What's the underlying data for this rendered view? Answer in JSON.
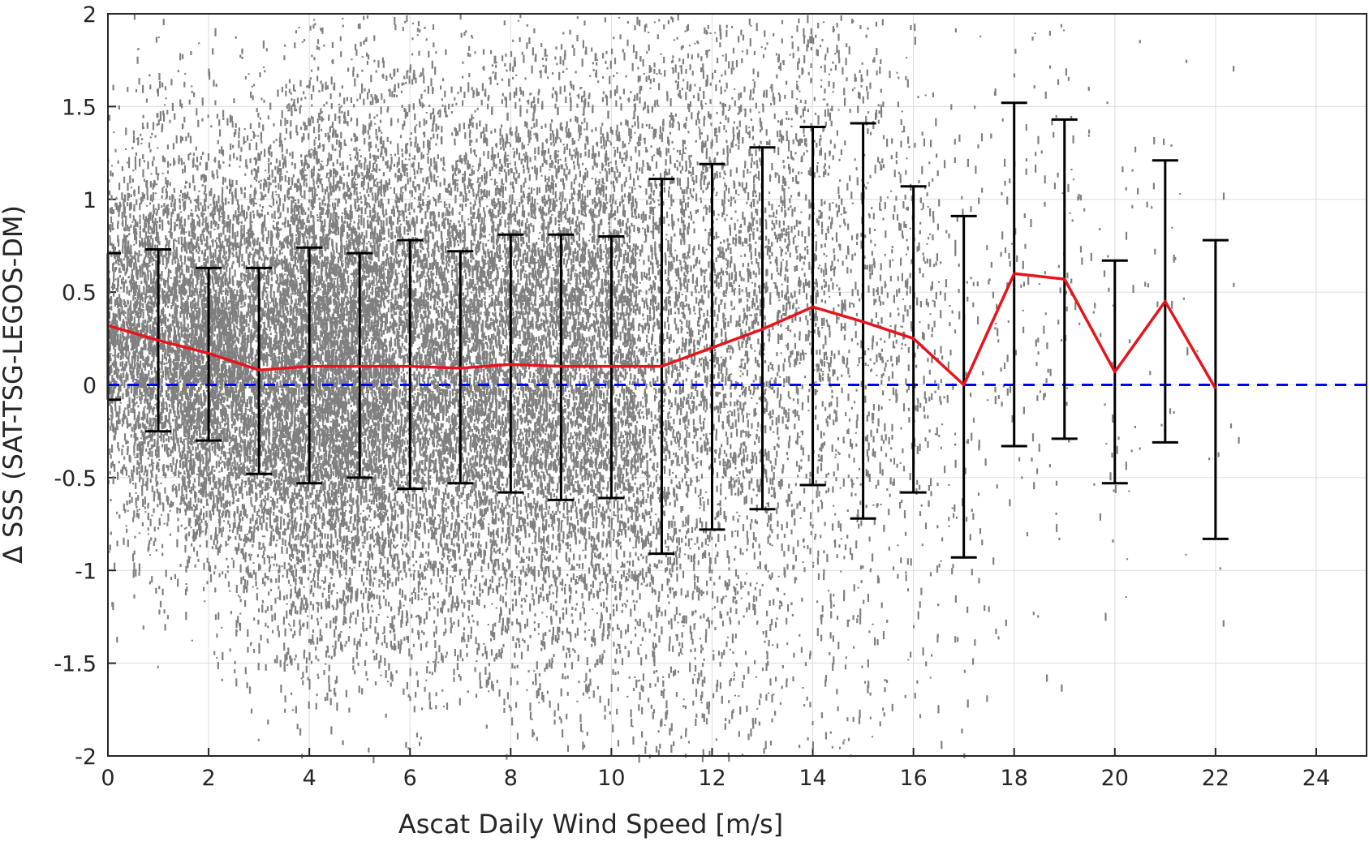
{
  "chart_data": {
    "type": "scatter",
    "title": "",
    "xlabel": "Ascat Daily Wind Speed [m/s]",
    "ylabel": "Δ SSS (SAT-TSG-LEGOS-DM)",
    "xlim": [
      0,
      25
    ],
    "ylim": [
      -2,
      2
    ],
    "xticks": [
      "0",
      "2",
      "4",
      "6",
      "8",
      "10",
      "12",
      "14",
      "16",
      "18",
      "20",
      "22",
      "24"
    ],
    "yticks": [
      "-2",
      "-1.5",
      "-1",
      "-0.5",
      "0",
      "0.5",
      "1",
      "1.5",
      "2"
    ],
    "grid": true,
    "scatter_color": "#808080",
    "series": [
      {
        "kind": "binned-mean-with-errorbars",
        "color": "#e8141c",
        "errorbar_color": "#000000",
        "x": [
          0,
          1,
          2,
          3,
          4,
          5,
          6,
          7,
          8,
          9,
          10,
          11,
          12,
          13,
          14,
          15,
          16,
          17,
          18,
          19,
          20,
          21,
          22
        ],
        "mean": [
          0.32,
          0.24,
          0.17,
          0.08,
          0.1,
          0.1,
          0.1,
          0.09,
          0.11,
          0.1,
          0.1,
          0.1,
          0.2,
          0.3,
          0.42,
          0.34,
          0.25,
          0.0,
          0.6,
          0.57,
          0.07,
          0.45,
          -0.02
        ],
        "upper": [
          0.71,
          0.73,
          0.63,
          0.63,
          0.74,
          0.71,
          0.78,
          0.72,
          0.81,
          0.81,
          0.8,
          1.11,
          1.19,
          1.28,
          1.39,
          1.41,
          1.07,
          0.91,
          1.52,
          1.43,
          0.67,
          1.21,
          0.78
        ],
        "lower": [
          -0.08,
          -0.25,
          -0.3,
          -0.48,
          -0.53,
          -0.5,
          -0.56,
          -0.53,
          -0.58,
          -0.62,
          -0.61,
          -0.91,
          -0.78,
          -0.67,
          -0.54,
          -0.72,
          -0.58,
          -0.93,
          -0.33,
          -0.29,
          -0.53,
          -0.31,
          -0.83
        ]
      },
      {
        "kind": "reference-line",
        "color": "#0000ff",
        "style": "dashed",
        "y": 0
      }
    ]
  }
}
